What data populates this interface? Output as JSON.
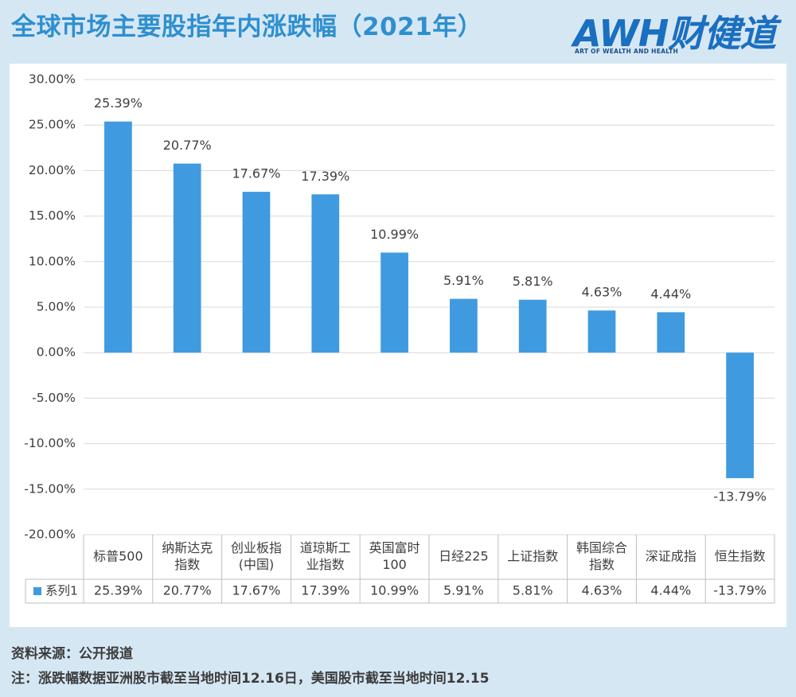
{
  "header": {
    "title": "全球市场主要股指年内涨跌幅（2021年）"
  },
  "logo": {
    "brand": "AWH财健道",
    "tagline": "ART OF WEALTH AND HEALTH"
  },
  "footer": {
    "source": "资料来源：公开报道",
    "note": "注：涨跌幅数据亚洲股市截至当地时间12.16日，美国股市截至当地时间12.15"
  },
  "colors": {
    "bar": "#3f9ae0",
    "grid": "#d9d9d9",
    "text": "#404040"
  },
  "chart_data": {
    "type": "bar",
    "categories": [
      [
        "标普500"
      ],
      [
        "纳斯达克",
        "指数"
      ],
      [
        "创业板指",
        "(中国)"
      ],
      [
        "道琼斯工",
        "业指数"
      ],
      [
        "英国富时",
        "100"
      ],
      [
        "日经225"
      ],
      [
        "上证指数"
      ],
      [
        "韩国综合",
        "指数"
      ],
      [
        "深证成指"
      ],
      [
        "恒生指数"
      ]
    ],
    "series": [
      {
        "name": "系列1",
        "values": [
          25.39,
          20.77,
          17.67,
          17.39,
          10.99,
          5.91,
          5.81,
          4.63,
          4.44,
          -13.79
        ],
        "labels": [
          "25.39%",
          "20.77%",
          "17.67%",
          "17.39%",
          "10.99%",
          "5.91%",
          "5.81%",
          "4.63%",
          "4.44%",
          "-13.79%"
        ]
      }
    ],
    "ylim": [
      -20,
      30
    ],
    "yticks": [
      30,
      25,
      20,
      15,
      10,
      5,
      0,
      -5,
      -10,
      -15,
      -20
    ],
    "ytick_labels": [
      "30.00%",
      "25.00%",
      "20.00%",
      "15.00%",
      "10.00%",
      "5.00%",
      "0.00%",
      "-5.00%",
      "-10.00%",
      "-15.00%",
      "-20.00%"
    ],
    "grid": true,
    "data_table": true
  }
}
